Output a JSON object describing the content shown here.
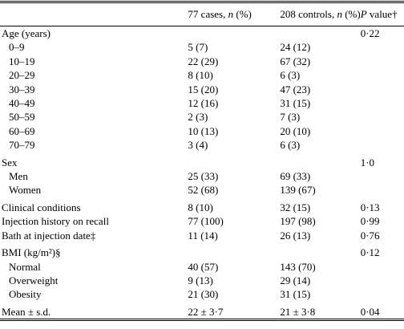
{
  "table": {
    "columns": [
      [
        "77 cases, ",
        "n",
        " (%)"
      ],
      [
        "208 controls, ",
        "n",
        " (%)"
      ],
      [
        "P",
        " value†"
      ]
    ],
    "rows": [
      {
        "label": "Age (years)",
        "cases": null,
        "controls": null,
        "p": "0·22",
        "sub": [
          {
            "label": "0–9",
            "cases": "5 (7)",
            "controls": "24 (12)"
          },
          {
            "label": "10–19",
            "cases": "22 (29)",
            "controls": "67 (32)"
          },
          {
            "label": "20–29",
            "cases": "8 (10)",
            "controls": "6 (3)"
          },
          {
            "label": "30–39",
            "cases": "15 (20)",
            "controls": "47 (23)"
          },
          {
            "label": "40–49",
            "cases": "12 (16)",
            "controls": "31 (15)"
          },
          {
            "label": "50–59",
            "cases": "2 (3)",
            "controls": "7 (3)"
          },
          {
            "label": "60–69",
            "cases": "10 (13)",
            "controls": "20 (10)"
          },
          {
            "label": "70–79",
            "cases": "3 (4)",
            "controls": "6 (3)"
          }
        ]
      },
      {
        "label": "Sex",
        "cases": null,
        "controls": null,
        "p": "1·0",
        "sub": [
          {
            "label": "Men",
            "cases": "25 (33)",
            "controls": "69 (33)"
          },
          {
            "label": "Women",
            "cases": "52 (68)",
            "controls": "139 (67)"
          }
        ]
      },
      {
        "label": "Clinical conditions",
        "cases": "8 (10)",
        "controls": "32 (15)",
        "p": "0·13",
        "sub": []
      },
      {
        "label": "Injection history on recall",
        "cases": "77 (100)",
        "controls": "197 (98)",
        "p": "0·99",
        "sub": []
      },
      {
        "label": "Bath at injection date‡",
        "cases": "11 (14)",
        "controls": "26 (13)",
        "p": "0·76",
        "sub": []
      },
      {
        "label": "BMI (kg/m²)§",
        "cases": null,
        "controls": null,
        "p": "0·12",
        "sub": [
          {
            "label": "Normal",
            "cases": "40 (57)",
            "controls": "143 (70)"
          },
          {
            "label": "Overweight",
            "cases": "9 (13)",
            "controls": "29 (14)"
          },
          {
            "label": "Obesity",
            "cases": "21 (30)",
            "controls": "31 (15)"
          }
        ]
      },
      {
        "label": "Mean ± s.d.",
        "cases": "22 ± 3·7",
        "controls": "21 ± 3·8",
        "p": "0·04",
        "sub": []
      }
    ]
  }
}
